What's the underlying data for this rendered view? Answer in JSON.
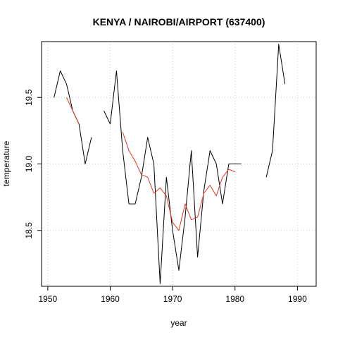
{
  "chart_data": {
    "type": "line",
    "title": "KENYA / NAIROBI/AIRPORT (637400)",
    "xlabel": "year",
    "ylabel": "temperature",
    "xlim": [
      1949,
      1993
    ],
    "ylim": [
      18.08,
      19.92
    ],
    "x_ticks": [
      1950,
      1960,
      1970,
      1980,
      1990
    ],
    "y_ticks": [
      18.5,
      19.0,
      19.5
    ],
    "grid": true,
    "colors": {
      "raw": "#000000",
      "smoothed": "#e8331f",
      "grid": "#cccccc"
    },
    "series": [
      {
        "key": "raw",
        "points": [
          [
            1951,
            19.5
          ],
          [
            1952,
            19.7
          ],
          [
            1953,
            19.6
          ],
          [
            1954,
            19.4
          ],
          [
            1955,
            19.3
          ],
          [
            1956,
            19.0
          ],
          [
            1957,
            19.2
          ],
          [
            1958,
            null
          ],
          [
            1959,
            19.4
          ],
          [
            1960,
            19.3
          ],
          [
            1961,
            19.7
          ],
          [
            1962,
            19.1
          ],
          [
            1963,
            18.7
          ],
          [
            1964,
            18.7
          ],
          [
            1965,
            18.9
          ],
          [
            1966,
            19.2
          ],
          [
            1967,
            19.0
          ],
          [
            1968,
            18.1
          ],
          [
            1969,
            18.9
          ],
          [
            1970,
            18.5
          ],
          [
            1971,
            18.2
          ],
          [
            1972,
            18.6
          ],
          [
            1973,
            19.1
          ],
          [
            1974,
            18.3
          ],
          [
            1975,
            18.8
          ],
          [
            1976,
            19.1
          ],
          [
            1977,
            19.0
          ],
          [
            1978,
            18.7
          ],
          [
            1979,
            19.0
          ],
          [
            1980,
            19.0
          ],
          [
            1981,
            19.0
          ],
          [
            1982,
            null
          ],
          [
            1983,
            null
          ],
          [
            1984,
            null
          ],
          [
            1985,
            18.9
          ],
          [
            1986,
            19.1
          ],
          [
            1987,
            19.9
          ],
          [
            1988,
            19.6
          ]
        ]
      },
      {
        "key": "smoothed",
        "points": [
          [
            1953,
            19.5
          ],
          [
            1954,
            19.4
          ],
          [
            1955,
            19.3
          ],
          [
            1956,
            null
          ],
          [
            1962,
            19.24
          ],
          [
            1963,
            19.1
          ],
          [
            1964,
            19.02
          ],
          [
            1965,
            18.92
          ],
          [
            1966,
            18.9
          ],
          [
            1967,
            18.78
          ],
          [
            1968,
            18.82
          ],
          [
            1969,
            18.76
          ],
          [
            1970,
            18.56
          ],
          [
            1971,
            18.5
          ],
          [
            1972,
            18.7
          ],
          [
            1973,
            18.58
          ],
          [
            1974,
            18.6
          ],
          [
            1975,
            18.78
          ],
          [
            1976,
            18.84
          ],
          [
            1977,
            18.76
          ],
          [
            1978,
            18.9
          ],
          [
            1979,
            18.96
          ],
          [
            1980,
            18.94
          ]
        ]
      }
    ]
  }
}
